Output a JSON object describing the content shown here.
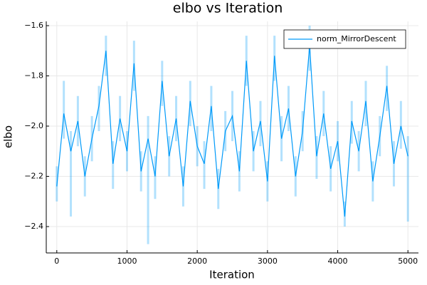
{
  "chart_data": {
    "type": "line",
    "title": "elbo vs Iteration",
    "x_label": "Iteration",
    "y_label": "elbo",
    "x": [
      0,
      100,
      200,
      300,
      400,
      500,
      600,
      700,
      800,
      900,
      1000,
      1100,
      1200,
      1300,
      1400,
      1500,
      1600,
      1700,
      1800,
      1900,
      2000,
      2100,
      2200,
      2300,
      2400,
      2500,
      2600,
      2700,
      2800,
      2900,
      3000,
      3100,
      3200,
      3300,
      3400,
      3500,
      3600,
      3700,
      3800,
      3900,
      4000,
      4100,
      4200,
      4300,
      4400,
      4500,
      4600,
      4700,
      4800,
      4900,
      5000
    ],
    "series": [
      {
        "name": "norm_MirrorDescent",
        "color": "#009af9",
        "values": [
          -2.24,
          -1.95,
          -2.1,
          -1.98,
          -2.2,
          -2.05,
          -1.92,
          -1.7,
          -2.15,
          -1.97,
          -2.1,
          -1.75,
          -2.18,
          -2.05,
          -2.2,
          -1.82,
          -2.12,
          -1.97,
          -2.24,
          -1.9,
          -2.08,
          -2.15,
          -1.92,
          -2.25,
          -2.02,
          -1.96,
          -2.18,
          -1.74,
          -2.1,
          -1.98,
          -2.22,
          -1.72,
          -2.05,
          -1.93,
          -2.2,
          -2.02,
          -1.68,
          -2.12,
          -1.95,
          -2.17,
          -2.06,
          -2.36,
          -1.98,
          -2.1,
          -1.9,
          -2.22,
          -2.04,
          -1.84,
          -2.15,
          -2.0,
          -2.12
        ],
        "lower": [
          -2.3,
          -2.05,
          -2.36,
          -2.08,
          -2.28,
          -2.14,
          -2.02,
          -1.8,
          -2.25,
          -2.06,
          -2.18,
          -1.86,
          -2.26,
          -2.47,
          -2.29,
          -1.92,
          -2.2,
          -2.06,
          -2.32,
          -2.0,
          -2.16,
          -2.25,
          -2.02,
          -2.33,
          -2.1,
          -2.06,
          -2.26,
          -1.84,
          -2.18,
          -2.08,
          -2.3,
          -1.82,
          -2.14,
          -2.02,
          -2.28,
          -2.1,
          -1.78,
          -2.21,
          -2.04,
          -2.26,
          -2.14,
          -2.4,
          -2.07,
          -2.18,
          -2.0,
          -2.3,
          -2.12,
          -1.94,
          -2.24,
          -2.09,
          -2.38
        ],
        "upper": [
          -2.16,
          -1.82,
          -2.02,
          -1.88,
          -2.12,
          -1.96,
          -1.84,
          -1.64,
          -2.06,
          -1.88,
          -2.02,
          -1.66,
          -2.1,
          -1.96,
          -2.12,
          -1.74,
          -2.04,
          -1.88,
          -2.16,
          -1.82,
          -2.0,
          -2.06,
          -1.84,
          -2.17,
          -1.94,
          -1.86,
          -2.1,
          -1.64,
          -2.02,
          -1.9,
          -2.14,
          -1.64,
          -1.96,
          -1.84,
          -2.12,
          -1.94,
          -1.6,
          -2.04,
          -1.86,
          -2.08,
          -1.98,
          -2.3,
          -1.9,
          -2.02,
          -1.82,
          -2.14,
          -1.96,
          -1.76,
          -2.06,
          -1.9,
          -2.04
        ]
      }
    ],
    "xlim": [
      -150,
      5150
    ],
    "ylim": [
      -2.505,
      -1.583
    ],
    "xticks": [
      0,
      1000,
      2000,
      3000,
      4000,
      5000
    ],
    "yticks": [
      {
        "value": -2.4,
        "label": "−2.4"
      },
      {
        "value": -2.2,
        "label": "−2.2"
      },
      {
        "value": -2.0,
        "label": "−2.0"
      },
      {
        "value": -1.8,
        "label": "−1.8"
      },
      {
        "value": -1.6,
        "label": "−1.6"
      }
    ],
    "grid": true,
    "legend": "top-right"
  }
}
